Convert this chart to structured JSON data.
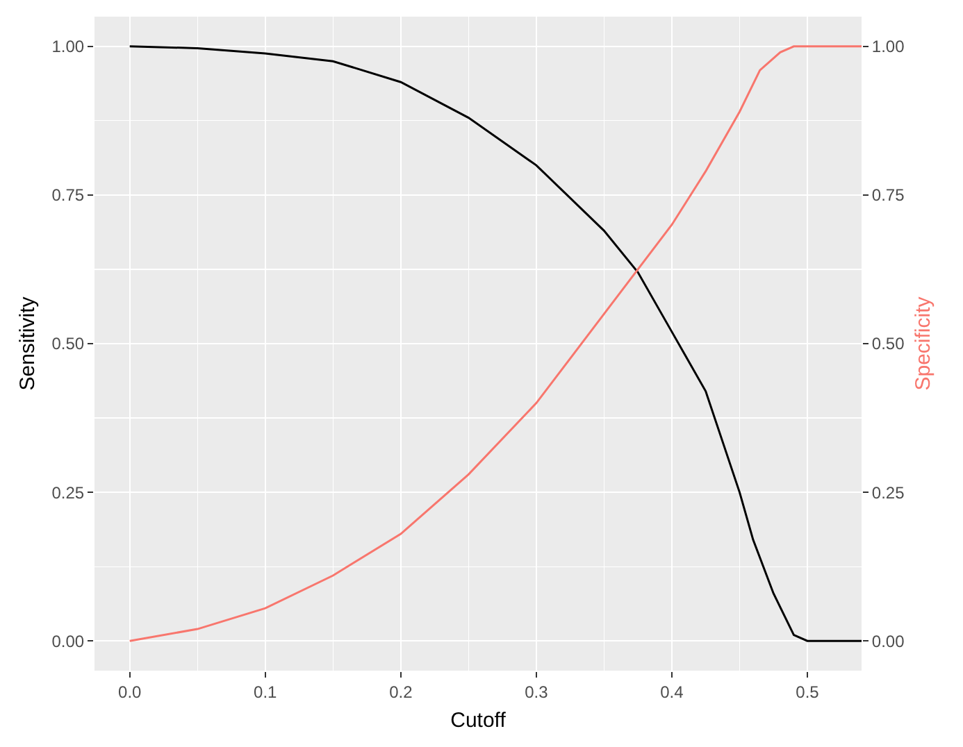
{
  "chart_data": {
    "type": "line",
    "xlabel": "Cutoff",
    "ylabel": "Sensitivity",
    "y2label": "Specificity",
    "xlim": [
      -0.026,
      0.54
    ],
    "xticks": [
      {
        "value": 0,
        "label": "0.0"
      },
      {
        "value": 0.1,
        "label": "0.1"
      },
      {
        "value": 0.2,
        "label": "0.2"
      },
      {
        "value": 0.3,
        "label": "0.3"
      },
      {
        "value": 0.4,
        "label": "0.4"
      },
      {
        "value": 0.5,
        "label": "0.5"
      }
    ],
    "ylim": [
      -0.05,
      1.05
    ],
    "yticks": [
      {
        "value": 0,
        "label": "0.00"
      },
      {
        "value": 0.25,
        "label": "0.25"
      },
      {
        "value": 0.5,
        "label": "0.50"
      },
      {
        "value": 0.75,
        "label": "0.75"
      },
      {
        "value": 1,
        "label": "1.00"
      }
    ],
    "y2lim": [
      -0.05,
      1.05
    ],
    "y2ticks": [
      {
        "value": 0,
        "label": "0.00"
      },
      {
        "value": 0.25,
        "label": "0.25"
      },
      {
        "value": 0.5,
        "label": "0.50"
      },
      {
        "value": 0.75,
        "label": "0.75"
      },
      {
        "value": 1,
        "label": "1.00"
      }
    ],
    "grid": true,
    "line_style": "solid",
    "marker": "none",
    "series": [
      {
        "color": "#000000",
        "x": [
          0,
          0.05,
          0.1,
          0.15,
          0.2,
          0.25,
          0.3,
          0.35,
          0.375,
          0.4,
          0.425,
          0.45,
          0.46,
          0.475,
          0.49,
          0.5,
          0.54
        ],
        "values": [
          1,
          0.997,
          0.988,
          0.975,
          0.94,
          0.88,
          0.8,
          0.69,
          0.62,
          0.52,
          0.42,
          0.25,
          0.17,
          0.08,
          0.01,
          0,
          0
        ]
      },
      {
        "color": "#f8766d",
        "axis": "y2",
        "x": [
          0,
          0.05,
          0.1,
          0.15,
          0.2,
          0.25,
          0.3,
          0.35,
          0.4,
          0.425,
          0.45,
          0.465,
          0.48,
          0.49,
          0.54
        ],
        "values": [
          0,
          0.02,
          0.055,
          0.11,
          0.18,
          0.28,
          0.4,
          0.55,
          0.7,
          0.79,
          0.89,
          0.96,
          0.99,
          1,
          1
        ]
      }
    ]
  }
}
